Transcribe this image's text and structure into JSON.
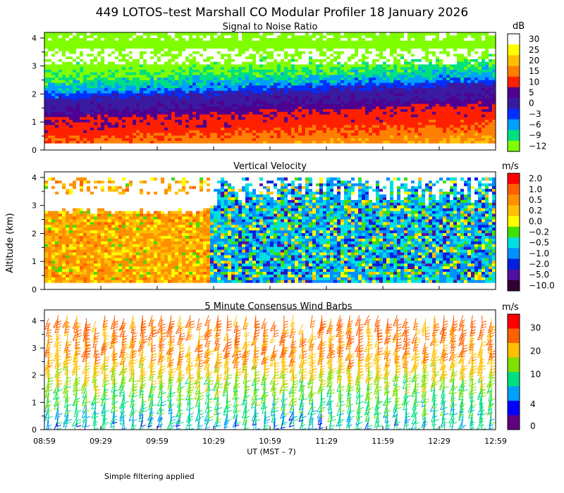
{
  "title": "449 LOTOS–test Marshall CO Modular Profiler 18 January 2026",
  "footer_note": "Simple filtering applied",
  "shared_y_axis_label": "Altitude (km)",
  "x_axis_label": "UT  (MST – 7)",
  "chart_data": [
    {
      "type": "heatmap",
      "title": "Signal to Noise Ratio",
      "unit": "dB",
      "xlabel": "UT  (MST – 7)",
      "ylabel": "Altitude (km)",
      "x_ticks": [
        "08:59",
        "09:29",
        "09:59",
        "10:29",
        "10:59",
        "11:29",
        "11:59",
        "12:29",
        "12:59"
      ],
      "y_ticks": [
        "0",
        "1",
        "2",
        "3",
        "4"
      ],
      "ylim": [
        0,
        4.2
      ],
      "colorbar_labels": [
        "30",
        "25",
        "20",
        "15",
        "10",
        "5",
        "0",
        "−3",
        "−6",
        "−9",
        "−12"
      ],
      "colorbar_colors": [
        "#ffffff",
        "#ffff00",
        "#ffbf00",
        "#ff8000",
        "#ff2000",
        "#500090",
        "#3a1aa0",
        "#0030ff",
        "#00a0ff",
        "#00e080",
        "#80ff00"
      ],
      "profile_by_altitude": [
        {
          "alt": 0.3,
          "snr": 15
        },
        {
          "alt": 0.6,
          "snr": 12
        },
        {
          "alt": 1.0,
          "snr": 11
        },
        {
          "alt": 1.3,
          "snr": 5
        },
        {
          "alt": 1.7,
          "snr": 2
        },
        {
          "alt": 2.0,
          "snr": -4
        },
        {
          "alt": 2.4,
          "snr": -8
        },
        {
          "alt": 2.8,
          "snr": -11
        },
        {
          "alt": 3.4,
          "snr": -12
        },
        {
          "alt": 4.0,
          "snr": -12
        }
      ]
    },
    {
      "type": "heatmap",
      "title": "Vertical Velocity",
      "unit": "m/s",
      "xlabel": "UT  (MST – 7)",
      "ylabel": "Altitude (km)",
      "x_ticks": [
        "08:59",
        "09:29",
        "09:59",
        "10:29",
        "10:59",
        "11:29",
        "11:59",
        "12:29",
        "12:59"
      ],
      "y_ticks": [
        "0",
        "1",
        "2",
        "3",
        "4"
      ],
      "ylim": [
        0,
        4.2
      ],
      "colorbar_labels": [
        "2.0",
        "1.0",
        "0.5",
        "0.2",
        "0.0",
        "−0.2",
        "−0.5",
        "−1.0",
        "−2.0",
        "−5.0",
        "−10.0"
      ],
      "colorbar_colors": [
        "#ff0000",
        "#ff6000",
        "#ff9000",
        "#ffc000",
        "#ffff00",
        "#40e000",
        "#00e0e0",
        "#0090ff",
        "#0020e0",
        "#5010a0",
        "#300030"
      ],
      "mean_by_period": [
        {
          "period": "08:59–10:29",
          "w": 0.3
        },
        {
          "period": "10:29–11:29",
          "w": -0.5
        },
        {
          "period": "11:29–12:59",
          "w": -0.3
        }
      ]
    },
    {
      "type": "wind_barbs",
      "title": "5 Minute Consensus Wind Barbs",
      "unit": "m/s",
      "xlabel": "UT  (MST – 7)",
      "ylabel": "Altitude (km)",
      "x_ticks": [
        "08:59",
        "09:29",
        "09:59",
        "10:29",
        "10:59",
        "11:29",
        "11:59",
        "12:29",
        "12:59"
      ],
      "y_ticks": [
        "0",
        "1",
        "2",
        "3",
        "4"
      ],
      "ylim": [
        0,
        4.4
      ],
      "colorbar_labels": [
        "30",
        "20",
        "10",
        "4",
        "0"
      ],
      "colorbar_colors": [
        "#ff0000",
        "#ff6000",
        "#ffc000",
        "#80e000",
        "#00e080",
        "#00a0ff",
        "#0000ff",
        "#600080"
      ],
      "speed_profile": [
        {
          "alt": 0.3,
          "speed": 6
        },
        {
          "alt": 1.0,
          "speed": 8
        },
        {
          "alt": 2.0,
          "speed": 12
        },
        {
          "alt": 3.0,
          "speed": 20
        },
        {
          "alt": 4.2,
          "speed": 22
        }
      ]
    }
  ]
}
